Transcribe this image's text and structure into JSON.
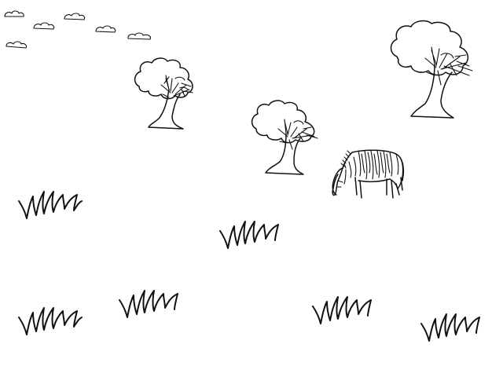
{
  "scene": {
    "background_color": "#ffffff",
    "line_color": "#111111"
  }
}
